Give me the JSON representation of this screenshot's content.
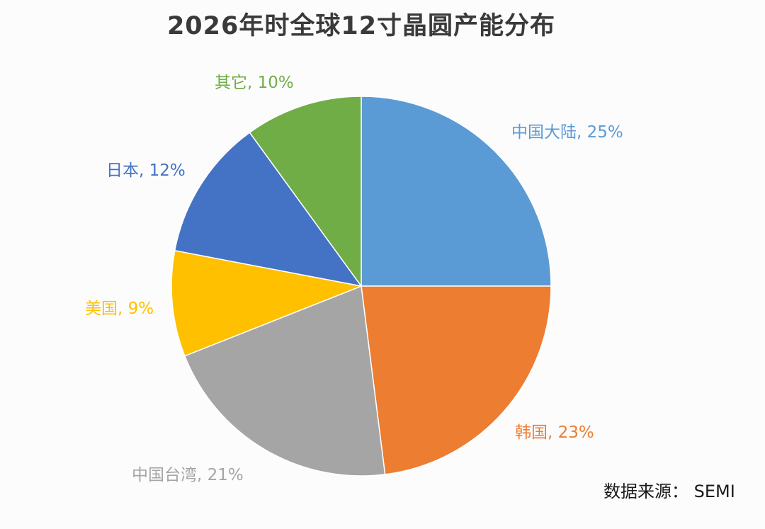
{
  "chart_data": {
    "type": "pie",
    "title": "2026年时全球12寸晶圆产能分布",
    "slices": [
      {
        "label": "中国大陆, 25%",
        "name": "中国大陆",
        "value": 25,
        "color": "#5B9BD5"
      },
      {
        "label": "韩国, 23%",
        "name": "韩国",
        "value": 23,
        "color": "#ED7D31"
      },
      {
        "label": "中国台湾, 21%",
        "name": "中国台湾",
        "value": 21,
        "color": "#A5A5A5"
      },
      {
        "label": "美国, 9%",
        "name": "美国",
        "value": 9,
        "color": "#FFC000"
      },
      {
        "label": "日本, 12%",
        "name": "日本",
        "value": 12,
        "color": "#4472C4"
      },
      {
        "label": "其它, 10%",
        "name": "其它",
        "value": 10,
        "color": "#70AD47"
      }
    ],
    "label_colors": [
      "#5B9BD5",
      "#ED7D31",
      "#A5A5A5",
      "#FFC000",
      "#4472C4",
      "#70AD47"
    ],
    "source": "数据来源：  SEMI"
  }
}
